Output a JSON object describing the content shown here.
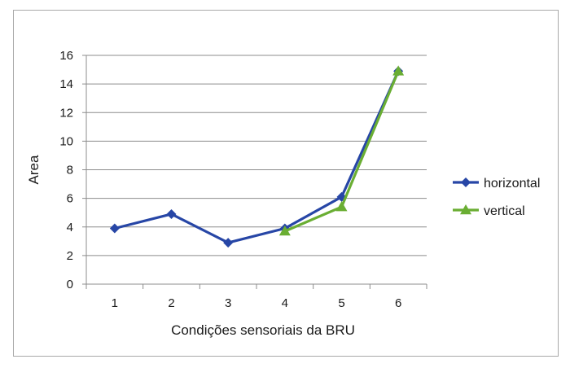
{
  "chart_data": {
    "type": "line",
    "title": "",
    "xlabel": "Condições sensoriais da BRU",
    "ylabel": "Area",
    "categories": [
      "1",
      "2",
      "3",
      "4",
      "5",
      "6"
    ],
    "ylim": [
      0,
      16
    ],
    "yticks": [
      "0",
      "2",
      "4",
      "6",
      "8",
      "10",
      "12",
      "14",
      "16"
    ],
    "grid": true,
    "legend_position": "right",
    "series": [
      {
        "name": "horizontal",
        "color": "#2746a6",
        "marker": "diamond",
        "values": [
          3.9,
          4.9,
          2.9,
          3.9,
          6.1,
          14.9
        ]
      },
      {
        "name": "vertical",
        "color": "#6aae33",
        "marker": "triangle",
        "values": [
          null,
          null,
          null,
          3.7,
          5.4,
          14.9
        ]
      }
    ]
  }
}
